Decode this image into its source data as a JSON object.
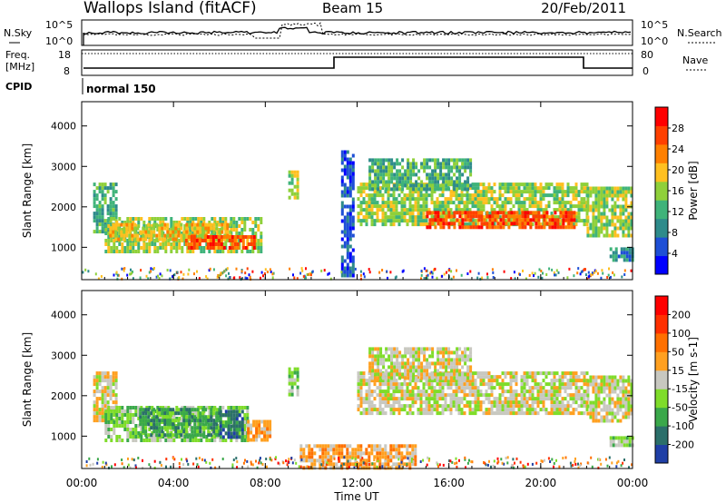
{
  "header": {
    "title": "Wallops Island (fitACF)",
    "beam": "Beam 15",
    "date": "20/Feb/2011"
  },
  "noise_panel": {
    "left_label": "N.Sky",
    "right_label": "N.Search",
    "tick_top": "10^5",
    "tick_bottom": "10^0"
  },
  "freq_panel": {
    "left_label_1": "Freq.",
    "left_label_2": "[MHz]",
    "right_label": "Nave",
    "left_ticks": [
      "18",
      "8"
    ],
    "right_ticks": [
      "80",
      "0"
    ]
  },
  "cpid_panel": {
    "label": "CPID",
    "program": "normal 150"
  },
  "colors": {
    "power": [
      "#0000ff",
      "#1e4fd6",
      "#2e8b8b",
      "#3fb37a",
      "#8fd03a",
      "#ffc020",
      "#ff8000",
      "#ff4000",
      "#ff0000"
    ],
    "velocity": [
      "#1f3fa6",
      "#2b6f6a",
      "#3aa84a",
      "#7fdc2a",
      "#c8c8c0",
      "#ffa020",
      "#ff7000",
      "#ff3000",
      "#ff0000"
    ]
  },
  "chart_data": [
    {
      "type": "heatmap",
      "name": "power",
      "ylabel": "Slant Range [km]",
      "yticks": [
        1000,
        2000,
        3000,
        4000
      ],
      "ylim": [
        200,
        4600
      ],
      "colorbar_label": "Power [dB]",
      "colorbar_ticks": [
        "28",
        "24",
        "20",
        "16",
        "12",
        "8",
        "4"
      ],
      "xlim": [
        0,
        24
      ],
      "regions": [
        {
          "t0": 0.5,
          "t1": 1.5,
          "r0": 1400,
          "r1": 2600,
          "level": 3
        },
        {
          "t0": 1.0,
          "t1": 7.8,
          "r0": 900,
          "r1": 1750,
          "level": 4
        },
        {
          "t0": 1.2,
          "t1": 6.5,
          "r0": 1200,
          "r1": 1600,
          "level": 5
        },
        {
          "t0": 4.5,
          "t1": 7.5,
          "r0": 1000,
          "r1": 1300,
          "level": 7
        },
        {
          "t0": 9.0,
          "t1": 9.4,
          "r0": 2200,
          "r1": 2900,
          "level": 4
        },
        {
          "t0": 11.3,
          "t1": 11.8,
          "r0": 300,
          "r1": 3400,
          "level": 1
        },
        {
          "t0": 12.0,
          "t1": 22.0,
          "r0": 1600,
          "r1": 2600,
          "level": 4
        },
        {
          "t0": 15.0,
          "t1": 21.5,
          "r0": 1500,
          "r1": 1900,
          "level": 7
        },
        {
          "t0": 12.5,
          "t1": 17.0,
          "r0": 2400,
          "r1": 3200,
          "level": 3
        },
        {
          "t0": 22.0,
          "t1": 24.0,
          "r0": 1300,
          "r1": 2500,
          "level": 4
        },
        {
          "t0": 23.0,
          "t1": 24.0,
          "r0": 700,
          "r1": 1000,
          "level": 2
        }
      ]
    },
    {
      "type": "heatmap",
      "name": "velocity",
      "ylabel": "Slant Range [km]",
      "yticks": [
        1000,
        2000,
        3000,
        4000
      ],
      "ylim": [
        200,
        4600
      ],
      "colorbar_label": "Velocity [m s-1]",
      "colorbar_ticks": [
        "200",
        "100",
        "50",
        "15",
        "-15",
        "-50",
        "-100",
        "-200"
      ],
      "xlabel": "Time UT",
      "xticks": [
        "00:00",
        "04:00",
        "08:00",
        "12:00",
        "16:00",
        "20:00",
        "00:00"
      ],
      "xlim": [
        0,
        24
      ],
      "regions": [
        {
          "t0": 0.5,
          "t1": 1.5,
          "r0": 1400,
          "r1": 2600,
          "level": 4
        },
        {
          "t0": 1.0,
          "t1": 7.2,
          "r0": 900,
          "r1": 1750,
          "level": 3
        },
        {
          "t0": 2.5,
          "t1": 6.0,
          "r0": 1000,
          "r1": 1700,
          "level": 2
        },
        {
          "t0": 6.0,
          "t1": 7.0,
          "r0": 950,
          "r1": 1650,
          "level": 1
        },
        {
          "t0": 7.2,
          "t1": 8.2,
          "r0": 950,
          "r1": 1400,
          "level": 5
        },
        {
          "t0": 9.0,
          "t1": 9.4,
          "r0": 2000,
          "r1": 2700,
          "level": 3
        },
        {
          "t0": 12.0,
          "t1": 22.0,
          "r0": 1600,
          "r1": 2600,
          "level": 4
        },
        {
          "t0": 12.5,
          "t1": 17.0,
          "r0": 2400,
          "r1": 3200,
          "level": 4
        },
        {
          "t0": 22.0,
          "t1": 24.0,
          "r0": 1400,
          "r1": 2500,
          "level": 4
        },
        {
          "t0": 23.0,
          "t1": 24.0,
          "r0": 800,
          "r1": 1000,
          "level": 3
        },
        {
          "t0": 9.5,
          "t1": 14.5,
          "r0": 250,
          "r1": 800,
          "level": 5
        }
      ]
    }
  ]
}
